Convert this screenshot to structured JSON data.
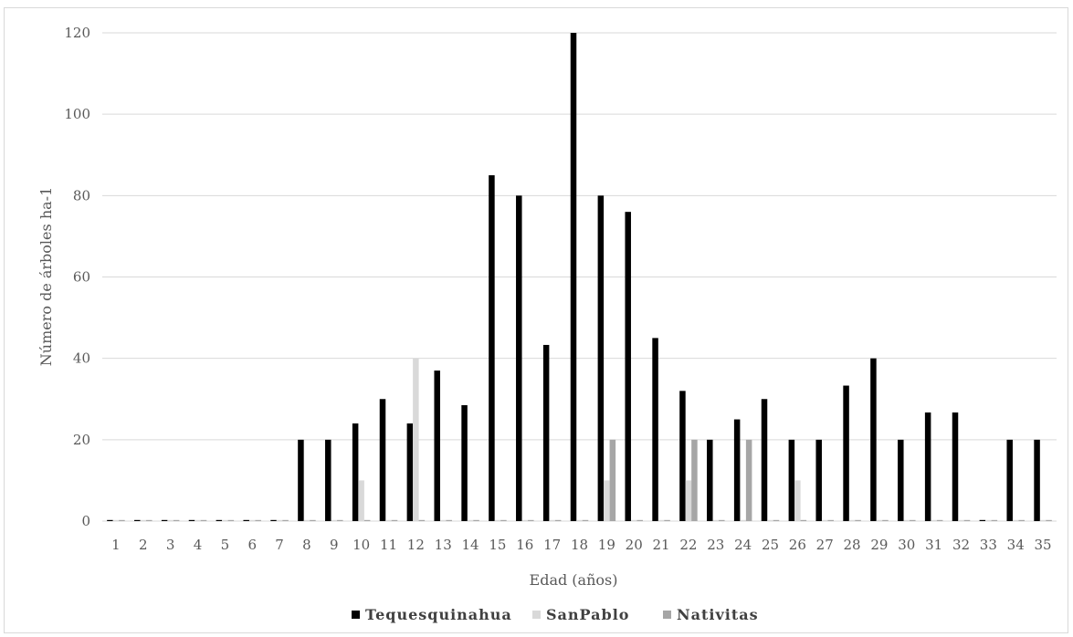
{
  "chart_data": {
    "type": "bar",
    "title": "",
    "xlabel": "Edad (años)",
    "ylabel": "Número de árboles ha-1",
    "ylim": [
      0,
      120
    ],
    "yticks": [
      0,
      20,
      40,
      60,
      80,
      100,
      120
    ],
    "grid": true,
    "legend_position": "bottom",
    "categories": [
      "1",
      "2",
      "3",
      "4",
      "5",
      "6",
      "7",
      "8",
      "9",
      "10",
      "11",
      "12",
      "13",
      "14",
      "15",
      "16",
      "17",
      "18",
      "19",
      "20",
      "21",
      "22",
      "23",
      "24",
      "25",
      "26",
      "27",
      "28",
      "29",
      "30",
      "31",
      "32",
      "33",
      "34",
      "35"
    ],
    "series": [
      {
        "name": "Tequesquinahua",
        "color": "#000000",
        "values": [
          0,
          0,
          0,
          0,
          0,
          0,
          0,
          20,
          20,
          24,
          30,
          24,
          37,
          28.5,
          85,
          80,
          43.3,
          120,
          80,
          76,
          45,
          32,
          20,
          25,
          30,
          20,
          20,
          33.3,
          40,
          20,
          26.7,
          26.7,
          0,
          20,
          20
        ]
      },
      {
        "name": "SanPablo",
        "color": "#d9d9d9",
        "values": [
          0,
          0,
          0,
          0,
          0,
          0,
          0,
          0,
          0,
          10,
          0,
          40,
          0,
          0,
          0,
          0,
          0,
          0,
          10,
          0,
          0,
          10,
          0,
          0,
          0,
          10,
          0,
          0,
          0,
          0,
          0,
          0,
          0,
          0,
          0
        ]
      },
      {
        "name": "Nativitas",
        "color": "#a6a6a6",
        "values": [
          0,
          0,
          0,
          0,
          0,
          0,
          0,
          0,
          0,
          0,
          0,
          0,
          0,
          0,
          0,
          0,
          0,
          0,
          20,
          0,
          0,
          20,
          0,
          20,
          0,
          0,
          0,
          0,
          0,
          0,
          0,
          0,
          0,
          0,
          0
        ]
      }
    ]
  }
}
